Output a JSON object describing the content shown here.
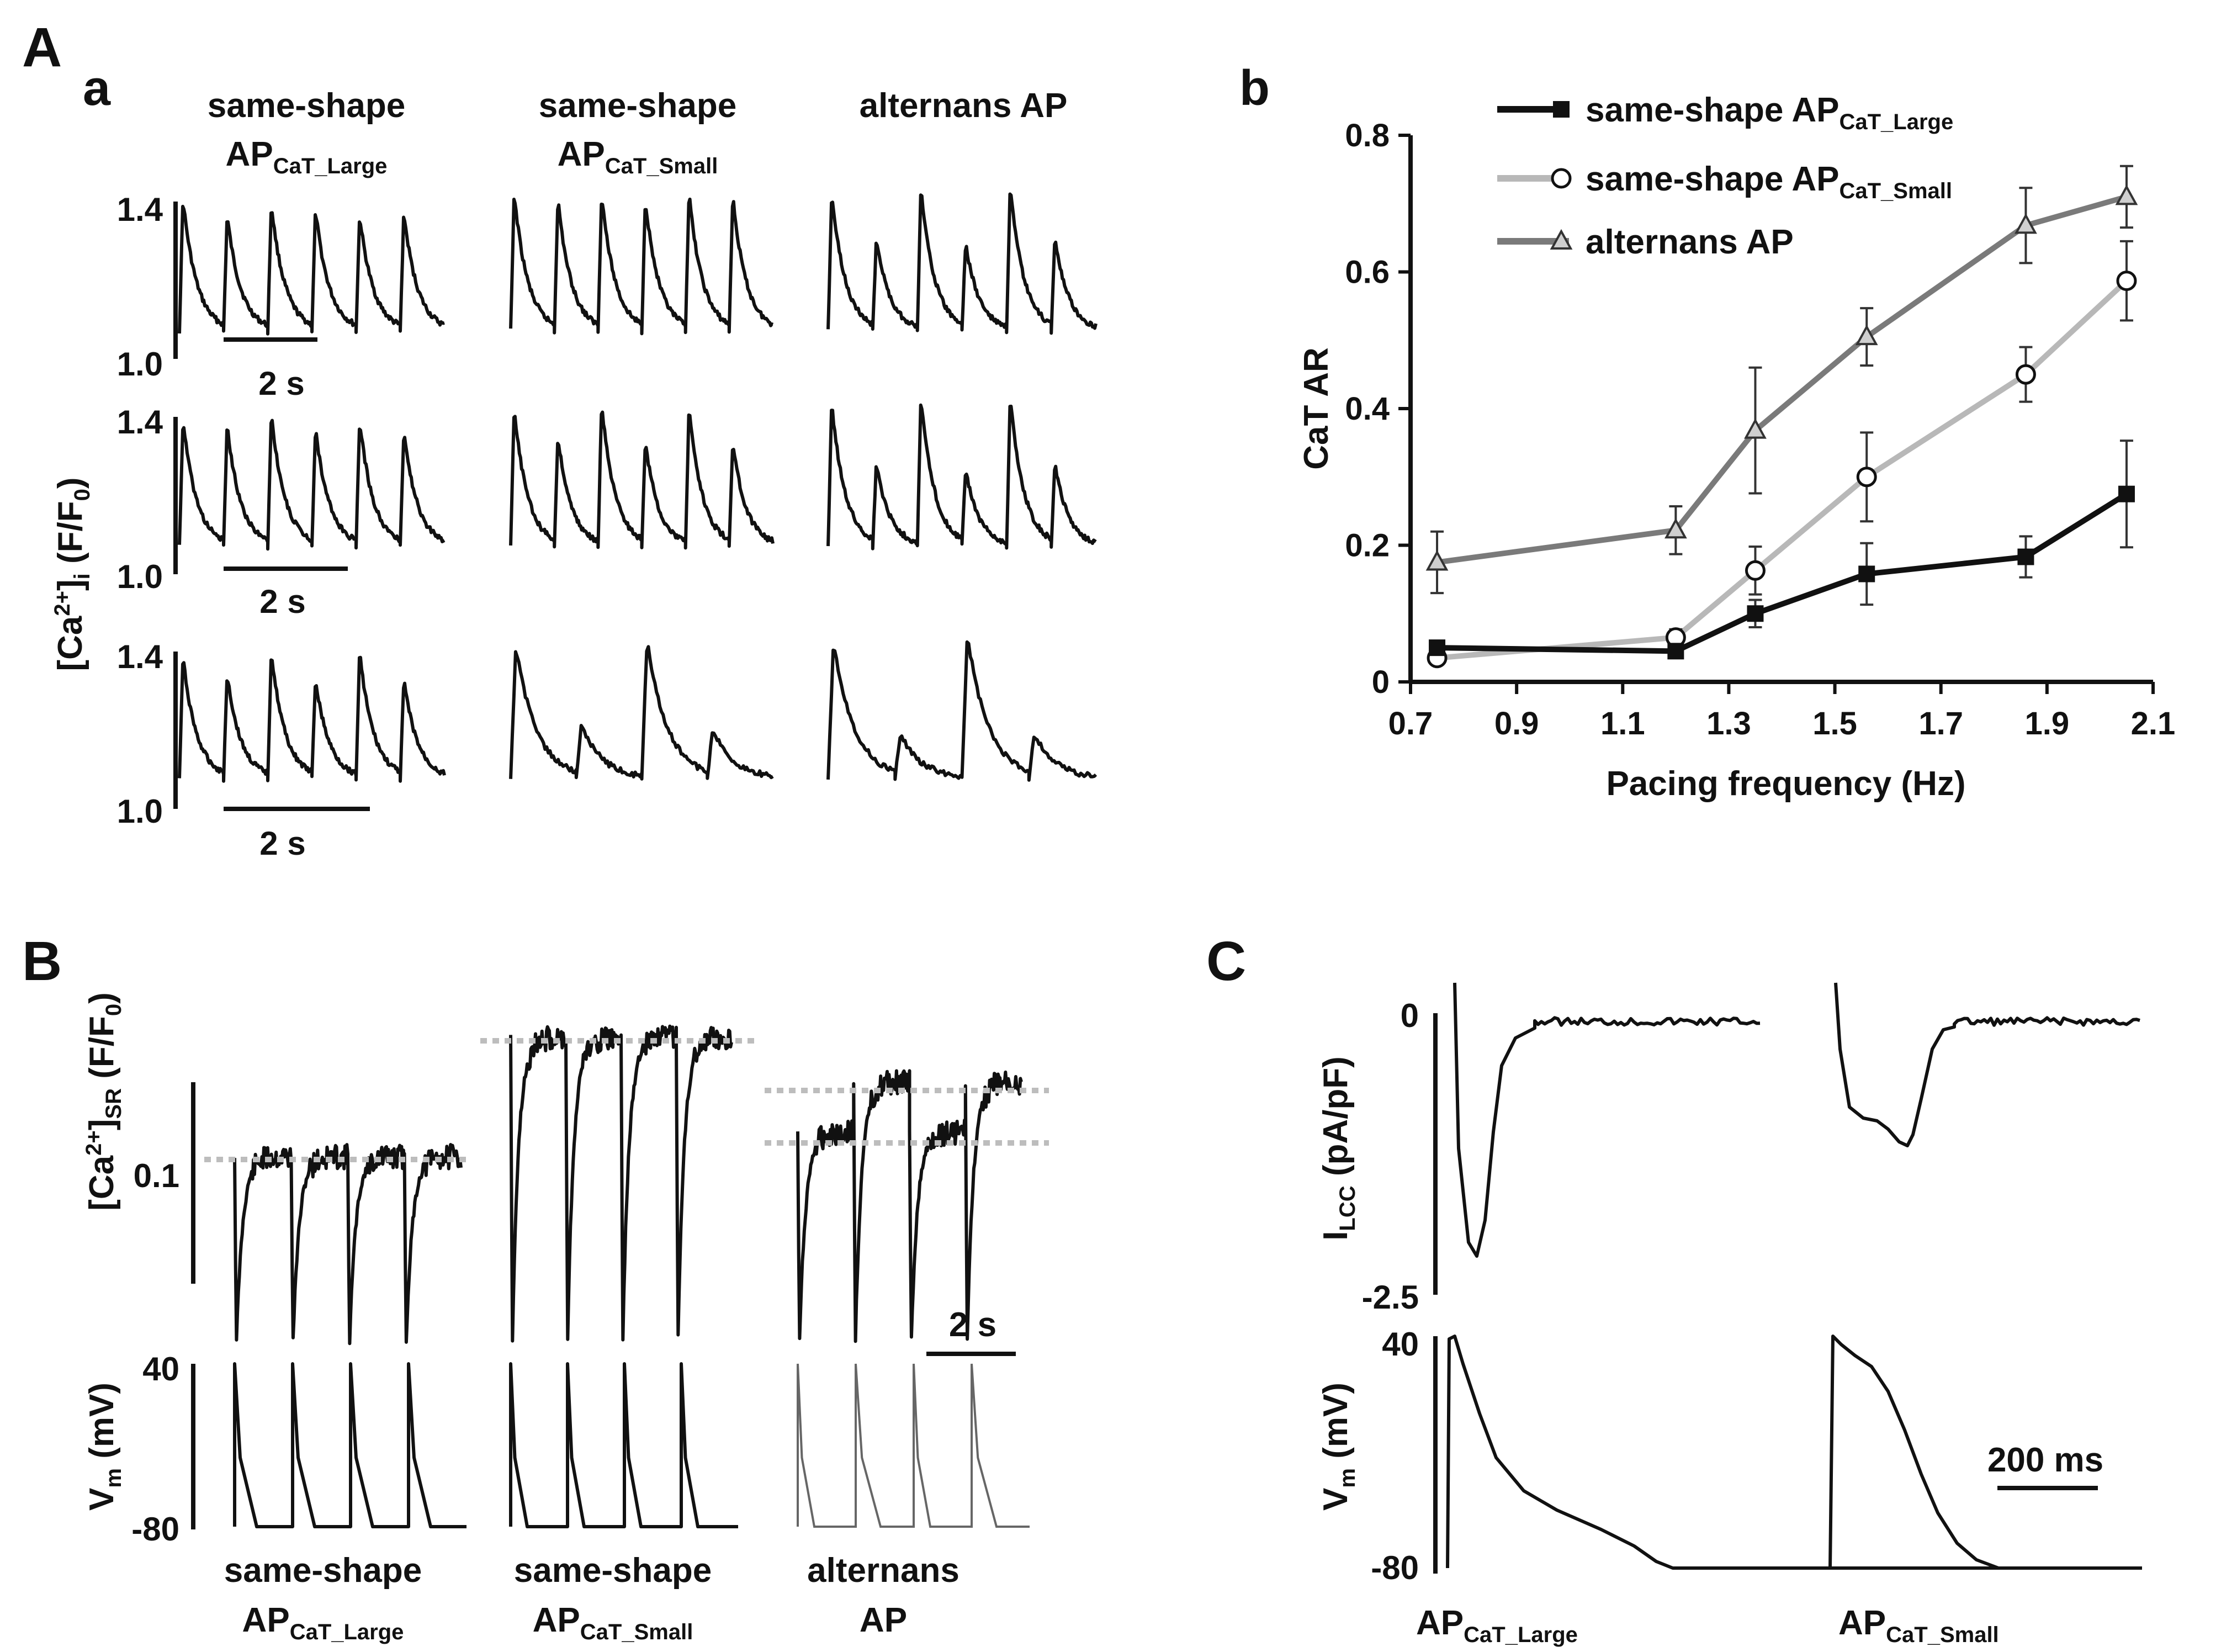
{
  "figure": {
    "panelA": "A",
    "panelAa": "a",
    "panelAb": "b",
    "panelB": "B",
    "panelC": "C"
  },
  "panel_Aa": {
    "col1": {
      "line1": "same-shape",
      "main": "AP",
      "sub": "CaT_Large"
    },
    "col2": {
      "line1": "same-shape",
      "main": "AP",
      "sub": "CaT_Small"
    },
    "col3": {
      "line1": "alternans AP"
    },
    "ylabel": {
      "main": "[Ca",
      "sup": "2+",
      "mid": "]",
      "sub": "i",
      "tail": " (F/F",
      "sub0": "0",
      "end": ")"
    },
    "tick_high": "1.4",
    "tick_low": "1.0",
    "scalebar": "2 s"
  },
  "chart_data": {
    "type": "line",
    "title": "",
    "xlabel": "Pacing frequency  (Hz)",
    "ylabel": "CaT AR",
    "xlim": [
      0.7,
      2.1
    ],
    "ylim": [
      0,
      0.8
    ],
    "xticks": [
      "0.7",
      "0.9",
      "1.1",
      "1.3",
      "1.5",
      "1.7",
      "1.9",
      "2.1"
    ],
    "yticks": [
      "0",
      "0.2",
      "0.4",
      "0.6",
      "0.8"
    ],
    "legend_position": "top-left",
    "series": [
      {
        "name": "same-shape AP",
        "sub": "CaT_Large",
        "marker": "square",
        "color": "#111111",
        "x": [
          0.75,
          1.2,
          1.35,
          1.56,
          1.86,
          2.05
        ],
        "y": [
          0.05,
          0.045,
          0.1,
          0.158,
          0.183,
          0.275
        ],
        "err": [
          0.005,
          0.008,
          0.02,
          0.045,
          0.03,
          0.078
        ]
      },
      {
        "name": "same-shape AP",
        "sub": "CaT_Small",
        "marker": "circle",
        "color": "#b8b8b8",
        "x": [
          0.75,
          1.2,
          1.35,
          1.56,
          1.86,
          2.05
        ],
        "y": [
          0.035,
          0.065,
          0.163,
          0.3,
          0.45,
          0.587
        ],
        "err": [
          0.007,
          0.012,
          0.035,
          0.065,
          0.04,
          0.058
        ]
      },
      {
        "name": "alternans AP",
        "sub": "",
        "marker": "triangle",
        "color": "#7a7a7a",
        "x": [
          0.75,
          1.2,
          1.35,
          1.56,
          1.86,
          2.05
        ],
        "y": [
          0.175,
          0.222,
          0.368,
          0.505,
          0.668,
          0.71
        ],
        "err": [
          0.045,
          0.035,
          0.092,
          0.042,
          0.055,
          0.045
        ]
      }
    ]
  },
  "panel_B": {
    "ylabel_top": {
      "main": "[Ca",
      "sup": "2+",
      "mid": "]",
      "sub": "SR",
      "tail": " (F/F",
      "sub0": "0",
      "end": ")"
    },
    "tick_top": "0.1",
    "ylabel_bottom": {
      "main": "V",
      "sub": "m",
      "tail": " (mV)"
    },
    "tick_v_high": "40",
    "tick_v_low": "-80",
    "scalebar": "2 s",
    "col1": {
      "line1": "same-shape",
      "main": "AP",
      "sub": "CaT_Large"
    },
    "col2": {
      "line1": "same-shape",
      "main": "AP",
      "sub": "CaT_Small"
    },
    "col3": {
      "line1": "alternans",
      "line2": "AP"
    }
  },
  "panel_C": {
    "ylabel_top": {
      "main": "I",
      "sub": "LCC",
      "tail": " (pA/pF)"
    },
    "tick_i_high": "0",
    "tick_i_low": "-2.5",
    "ylabel_bottom": {
      "main": "V",
      "sub": "m",
      "tail": " (mV)"
    },
    "tick_v_high": "40",
    "tick_v_low": "-80",
    "scalebar": "200 ms",
    "label1": {
      "main": "AP",
      "sub": "CaT_Large"
    },
    "label2": {
      "main": "AP",
      "sub": "CaT_Small"
    }
  }
}
